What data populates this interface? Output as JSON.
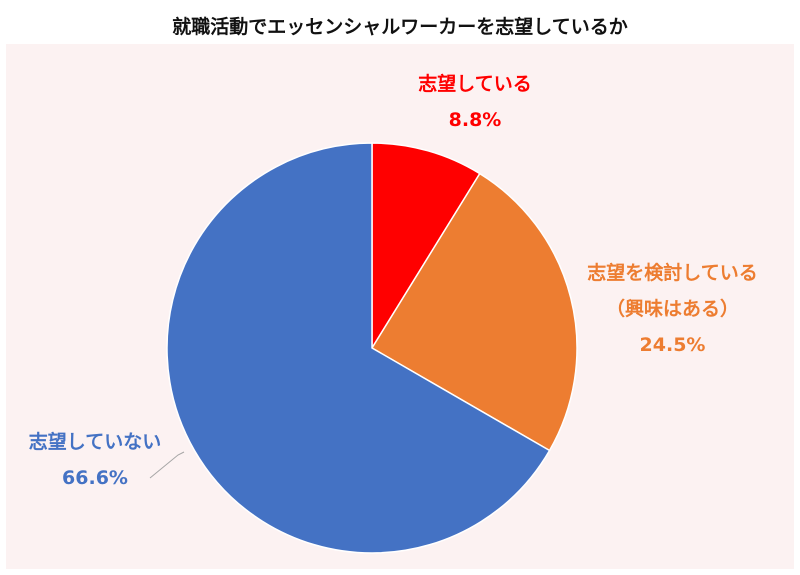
{
  "chart_data": {
    "type": "pie",
    "title": "就職活動でエッセンシャルワーカーを志望しているか",
    "slices": [
      {
        "label": "志望している",
        "value": 8.8,
        "value_text": "8.8%",
        "color": "#ff0000"
      },
      {
        "label": "志望を検討している（興味はある）",
        "label_lines": [
          "志望を検討している",
          "（興味はある）"
        ],
        "value": 24.5,
        "value_text": "24.5%",
        "color": "#ed7d31"
      },
      {
        "label": "志望していない",
        "value": 66.6,
        "value_text": "66.6%",
        "color": "#4472c4"
      }
    ]
  }
}
